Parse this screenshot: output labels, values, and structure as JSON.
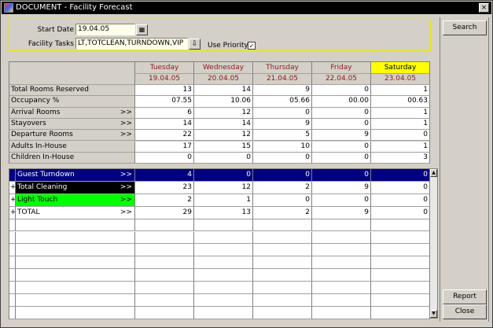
{
  "window": {
    "title": "DOCUMENT - Facility Forecast",
    "close_glyph": "×"
  },
  "filter": {
    "start_date_label": "Start Date",
    "start_date": "19.04.05",
    "facility_tasks_label": "Facility Tasks",
    "facility_tasks": "LT,TOTCLEAN,TURNDOWN,VIP",
    "use_priority_label": "Use Priority",
    "use_priority": true
  },
  "days": [
    {
      "day": "Tuesday",
      "date": "19.04.05",
      "highlight": false
    },
    {
      "day": "Wednesday",
      "date": "20.04.05",
      "highlight": false
    },
    {
      "day": "Thursday",
      "date": "21.04.05",
      "highlight": false
    },
    {
      "day": "Friday",
      "date": "22.04.05",
      "highlight": false
    },
    {
      "day": "Saturday",
      "date": "23.04.05",
      "highlight": true
    }
  ],
  "stats": [
    {
      "label": "Total Rooms Reserved",
      "drill": "",
      "values": [
        "13",
        "14",
        "9",
        "0",
        "1"
      ]
    },
    {
      "label": "Occupancy %",
      "drill": "",
      "values": [
        "07.55",
        "10.06",
        "05.66",
        "00.00",
        "00.63"
      ]
    },
    {
      "label": "Arrival Rooms",
      "drill": ">>",
      "values": [
        "6",
        "12",
        "0",
        "0",
        "1"
      ]
    },
    {
      "label": "Stayovers",
      "drill": ">>",
      "values": [
        "14",
        "14",
        "9",
        "0",
        "1"
      ]
    },
    {
      "label": "Departure Rooms",
      "drill": ">>",
      "values": [
        "22",
        "12",
        "5",
        "9",
        "0"
      ]
    },
    {
      "label": "Adults In-House",
      "drill": "",
      "values": [
        "17",
        "15",
        "10",
        "0",
        "1"
      ]
    },
    {
      "label": "Children In-House",
      "drill": "",
      "values": [
        "0",
        "0",
        "0",
        "0",
        "3"
      ]
    }
  ],
  "tasks": [
    {
      "marker": "",
      "label": "Guest Turndown",
      "drill": ">>",
      "color": "#000080",
      "text_color": "#ffffff",
      "selected": true,
      "values": [
        "4",
        "0",
        "0",
        "0",
        "0"
      ]
    },
    {
      "marker": "+",
      "label": "Total Cleaning",
      "drill": ">>",
      "color": "#000000",
      "text_color": "#ffffff",
      "selected": false,
      "values": [
        "23",
        "12",
        "2",
        "9",
        "0"
      ]
    },
    {
      "marker": "+",
      "label": "Light Touch",
      "drill": ">>",
      "color": "#00ff00",
      "text_color": "#000000",
      "selected": false,
      "values": [
        "2",
        "1",
        "0",
        "0",
        "0"
      ]
    },
    {
      "marker": "+",
      "label": "TOTAL",
      "drill": ">>",
      "color": "#ffffff",
      "text_color": "#000000",
      "selected": false,
      "values": [
        "29",
        "13",
        "2",
        "9",
        "0"
      ]
    }
  ],
  "buttons": {
    "search": "Search",
    "report": "Report",
    "close": "Close"
  },
  "colors": {
    "highlight_day": "#ffff00",
    "date_text": "#8b1a1a",
    "selected_row": "#000080"
  }
}
